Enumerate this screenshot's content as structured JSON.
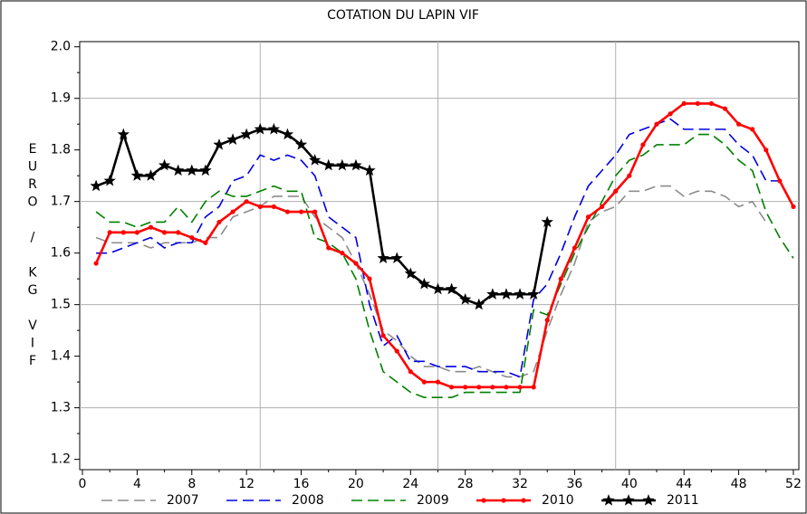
{
  "chart_data": {
    "type": "line",
    "title": "COTATION DU LAPIN VIF",
    "ylabel": "EURO / KG VIF",
    "x": [
      1,
      2,
      3,
      4,
      5,
      6,
      7,
      8,
      9,
      10,
      11,
      12,
      13,
      14,
      15,
      16,
      17,
      18,
      19,
      20,
      21,
      22,
      23,
      24,
      25,
      26,
      27,
      28,
      29,
      30,
      31,
      32,
      33,
      34,
      35,
      36,
      37,
      38,
      39,
      40,
      41,
      42,
      43,
      44,
      45,
      46,
      47,
      48,
      49,
      50,
      51,
      52
    ],
    "xlim": [
      -0.2,
      52.4
    ],
    "xticks": [
      0,
      4,
      8,
      12,
      16,
      20,
      24,
      28,
      32,
      36,
      40,
      44,
      48,
      52
    ],
    "ylim": [
      1.18,
      2.01
    ],
    "yticks": [
      1.2,
      1.3,
      1.4,
      1.5,
      1.6,
      1.7,
      1.8,
      1.9,
      {
        "value": 2,
        "label": "2.0"
      }
    ],
    "grid_x": [
      13,
      26,
      39
    ],
    "grid_y": [
      1.3,
      1.5,
      1.7,
      1.9
    ],
    "series": [
      {
        "name": "2007",
        "color": "#8c8c8c",
        "style": "dashed",
        "marker": "none",
        "values": [
          1.63,
          1.62,
          1.62,
          1.62,
          1.61,
          1.62,
          1.62,
          1.62,
          1.63,
          1.63,
          1.67,
          1.68,
          1.69,
          1.71,
          1.71,
          1.71,
          1.67,
          1.65,
          1.63,
          1.58,
          1.52,
          1.45,
          1.43,
          1.4,
          1.38,
          1.38,
          1.37,
          1.37,
          1.38,
          1.37,
          1.36,
          1.36,
          1.37,
          1.45,
          1.52,
          1.58,
          1.66,
          1.68,
          1.69,
          1.72,
          1.72,
          1.73,
          1.73,
          1.71,
          1.72,
          1.72,
          1.71,
          1.69,
          1.7,
          1.66,
          null,
          null
        ]
      },
      {
        "name": "2008",
        "color": "#0000e0",
        "style": "dashed",
        "marker": "none",
        "values": [
          1.6,
          1.6,
          1.61,
          1.62,
          1.63,
          1.61,
          1.62,
          1.62,
          1.67,
          1.69,
          1.74,
          1.75,
          1.79,
          1.78,
          1.79,
          1.78,
          1.75,
          1.67,
          1.65,
          1.63,
          1.5,
          1.42,
          1.44,
          1.39,
          1.39,
          1.38,
          1.38,
          1.38,
          1.37,
          1.37,
          1.37,
          1.36,
          1.51,
          1.54,
          1.6,
          1.67,
          1.73,
          1.76,
          1.79,
          1.83,
          1.84,
          1.85,
          1.86,
          1.84,
          1.84,
          1.84,
          1.84,
          1.81,
          1.79,
          1.74,
          1.74,
          null
        ]
      },
      {
        "name": "2009",
        "color": "#008000",
        "style": "dashed",
        "marker": "none",
        "values": [
          1.68,
          1.66,
          1.66,
          1.65,
          1.66,
          1.66,
          1.69,
          1.66,
          1.7,
          1.72,
          1.71,
          1.71,
          1.72,
          1.73,
          1.72,
          1.72,
          1.63,
          1.62,
          1.6,
          1.55,
          1.45,
          1.37,
          1.35,
          1.33,
          1.32,
          1.32,
          1.32,
          1.33,
          1.33,
          1.33,
          1.33,
          1.33,
          1.49,
          1.48,
          1.54,
          1.6,
          1.65,
          1.7,
          1.75,
          1.78,
          1.79,
          1.81,
          1.81,
          1.81,
          1.83,
          1.83,
          1.81,
          1.78,
          1.76,
          1.68,
          1.63,
          1.59
        ]
      },
      {
        "name": "2010",
        "color": "#ff0000",
        "style": "solid",
        "marker": "dot",
        "values": [
          1.58,
          1.64,
          1.64,
          1.64,
          1.65,
          1.64,
          1.64,
          1.63,
          1.62,
          1.66,
          1.68,
          1.7,
          1.69,
          1.69,
          1.68,
          1.68,
          1.68,
          1.61,
          1.6,
          1.58,
          1.55,
          1.44,
          1.41,
          1.37,
          1.35,
          1.35,
          1.34,
          1.34,
          1.34,
          1.34,
          1.34,
          1.34,
          1.34,
          1.47,
          1.55,
          1.61,
          1.67,
          1.69,
          1.72,
          1.75,
          1.81,
          1.85,
          1.87,
          1.89,
          1.89,
          1.89,
          1.88,
          1.85,
          1.84,
          1.8,
          1.74,
          1.69
        ]
      },
      {
        "name": "2011",
        "color": "#000000",
        "style": "solid",
        "marker": "star",
        "values": [
          1.73,
          1.74,
          1.83,
          1.75,
          1.75,
          1.77,
          1.76,
          1.76,
          1.76,
          1.81,
          1.82,
          1.83,
          1.84,
          1.84,
          1.83,
          1.81,
          1.78,
          1.77,
          1.77,
          1.77,
          1.76,
          1.59,
          1.59,
          1.56,
          1.54,
          1.53,
          1.53,
          1.51,
          1.5,
          1.52,
          1.52,
          1.52,
          1.52,
          1.66,
          null,
          null,
          null,
          null,
          null,
          null,
          null,
          null,
          null,
          null,
          null,
          null,
          null,
          null,
          null,
          null,
          null,
          null
        ]
      }
    ]
  }
}
